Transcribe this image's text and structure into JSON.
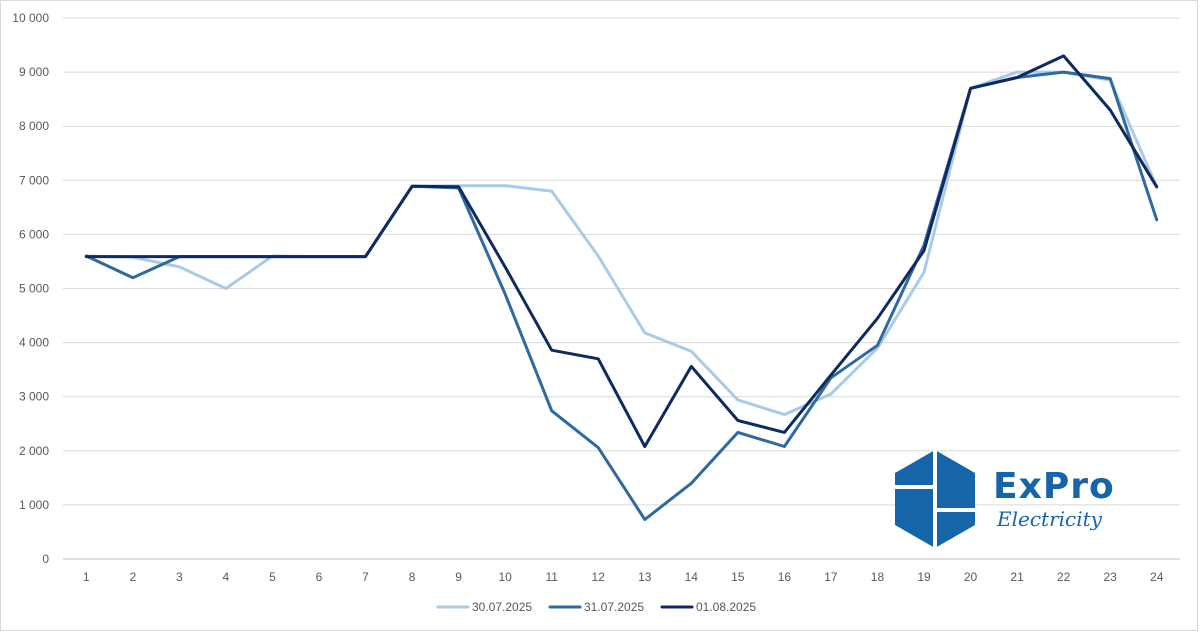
{
  "chart_data": {
    "type": "line",
    "x": [
      "1",
      "2",
      "3",
      "4",
      "5",
      "6",
      "7",
      "8",
      "9",
      "10",
      "11",
      "12",
      "13",
      "14",
      "15",
      "16",
      "17",
      "18",
      "19",
      "20",
      "21",
      "22",
      "23",
      "24"
    ],
    "yticks": [
      "0",
      "1 000",
      "2 000",
      "3 000",
      "4 000",
      "5 000",
      "6 000",
      "7 000",
      "8 000",
      "9 000",
      "10 000"
    ],
    "ylim": [
      0,
      10000
    ],
    "grid": true,
    "legend": "bottom",
    "series": [
      {
        "name": "30.07.2025",
        "color": "#a9cbe8",
        "values": [
          5600,
          5580,
          5400,
          5000,
          5600,
          5590,
          5590,
          6890,
          6900,
          6900,
          6800,
          5600,
          4180,
          3840,
          2940,
          2670,
          3050,
          3900,
          5300,
          8700,
          9000,
          9000,
          8850,
          6880
        ]
      },
      {
        "name": "31.07.2025",
        "color": "#2e6aa0",
        "values": [
          5600,
          5200,
          5590,
          5590,
          5590,
          5590,
          5590,
          6890,
          6860,
          4900,
          2740,
          2060,
          730,
          1400,
          2340,
          2080,
          3350,
          3950,
          5800,
          8700,
          8900,
          9000,
          8880,
          6270
        ]
      },
      {
        "name": "01.08.2025",
        "color": "#0e2a5e",
        "values": [
          5590,
          5590,
          5590,
          5590,
          5590,
          5590,
          5590,
          6890,
          6880,
          5400,
          3860,
          3700,
          2080,
          3560,
          2560,
          2340,
          3400,
          4450,
          5700,
          8700,
          8900,
          9300,
          8300,
          6880
        ]
      }
    ]
  },
  "logo": {
    "name": "ExPro",
    "subtitle": "Electricity",
    "color": "#1565a8"
  }
}
